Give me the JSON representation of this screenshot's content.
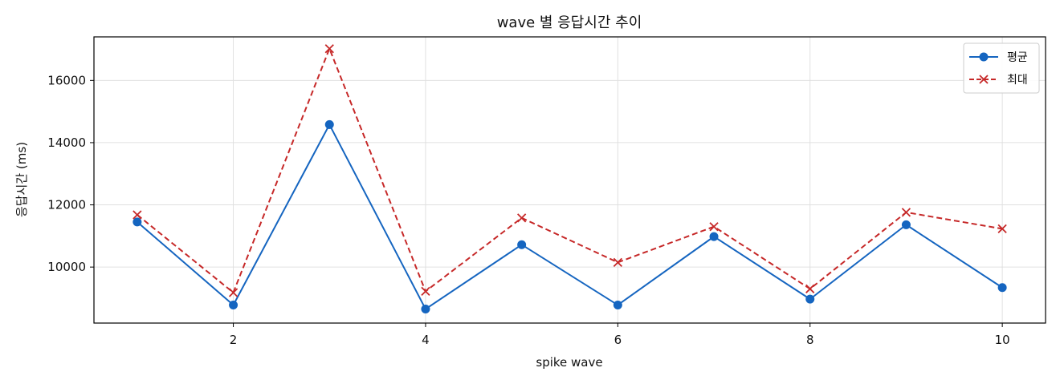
{
  "chart_data": {
    "type": "line",
    "title": "wave 별 응답시간 추이",
    "xlabel": "spike wave",
    "ylabel": "응답시간 (ms)",
    "x": [
      1,
      2,
      3,
      4,
      5,
      6,
      7,
      8,
      9,
      10
    ],
    "xlim": [
      0.55,
      10.45
    ],
    "ylim": [
      8200,
      17400
    ],
    "xticks": [
      2,
      4,
      6,
      8,
      10
    ],
    "yticks": [
      10000,
      12000,
      14000,
      16000
    ],
    "grid": true,
    "legend_position": "top-right",
    "series": [
      {
        "name": "평균",
        "marker": "circle",
        "line_style": "solid",
        "color": "#1565c0",
        "values": [
          11450,
          8780,
          14580,
          8650,
          10720,
          8780,
          10980,
          8970,
          11360,
          9340
        ]
      },
      {
        "name": "최대",
        "marker": "x",
        "line_style": "dashed",
        "color": "#c62828",
        "values": [
          11680,
          9180,
          17020,
          9220,
          11580,
          10150,
          11300,
          9300,
          11760,
          11230
        ]
      }
    ]
  }
}
